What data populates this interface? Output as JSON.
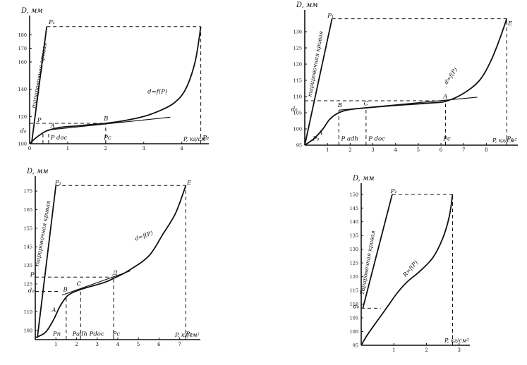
{
  "chart_data": [
    {
      "type": "line",
      "xlabel": "P, кг/см²",
      "ylabel": "D, мм",
      "xlim": [
        0,
        4.6
      ],
      "ylim": [
        100,
        190
      ],
      "x_ticks": [
        {
          "v": 0,
          "t": "0"
        },
        {
          "v": 1,
          "t": "1"
        },
        {
          "v": 2,
          "t": "2"
        },
        {
          "v": 3,
          "t": "3"
        },
        {
          "v": 4,
          "t": "4"
        }
      ],
      "y_ticks": [
        {
          "v": 100,
          "t": "100"
        },
        {
          "v": 120,
          "t": "120"
        },
        {
          "v": 140,
          "t": "140"
        },
        {
          "v": 160,
          "t": "160"
        },
        {
          "v": 170,
          "t": "170"
        },
        {
          "v": 180,
          "t": "180"
        }
      ],
      "series": [
        {
          "name": "d=f(P)",
          "role": "curve",
          "x": [
            0,
            0.15,
            0.35,
            0.5,
            0.8,
            1.2,
            1.6,
            2.0,
            2.5,
            3.0,
            3.4,
            3.8,
            4.1,
            4.35,
            4.5
          ],
          "y": [
            100,
            104,
            108,
            110,
            112,
            113,
            114,
            115,
            117,
            120,
            124,
            130,
            140,
            160,
            186
          ]
        },
        {
          "name": "",
          "role": "tangent",
          "x": [
            0.45,
            3.7
          ],
          "y": [
            110,
            119.5
          ]
        },
        {
          "name": "тарировочная кривая",
          "role": "calib",
          "x": [
            0.05,
            0.45
          ],
          "y": [
            100,
            186
          ]
        }
      ],
      "dashed": [
        {
          "x": [
            0.45,
            4.5
          ],
          "y": [
            186,
            186
          ]
        },
        {
          "x": [
            4.5,
            4.5
          ],
          "y": [
            100,
            186
          ]
        },
        {
          "x": [
            0,
            2.0
          ],
          "y": [
            115,
            115
          ]
        },
        {
          "x": [
            2.0,
            2.0
          ],
          "y": [
            100,
            115
          ]
        },
        {
          "x": [
            0.5,
            0.5
          ],
          "y": [
            100,
            110
          ]
        },
        {
          "x": [
            0.35,
            0.35
          ],
          "y": [
            100,
            108
          ]
        }
      ],
      "labels": [
        {
          "t": "d=f(P)",
          "x": 3.1,
          "y": 137
        },
        {
          "t": "B",
          "x": 1.95,
          "y": 117
        },
        {
          "t": "A",
          "x": 0.55,
          "y": 112
        },
        {
          "t": "P₁",
          "x": 0.5,
          "y": 188
        },
        {
          "t": "P₂",
          "x": 4.55,
          "y": 103
        },
        {
          "t": "P",
          "x": 0.2,
          "y": 116
        },
        {
          "t": "d₀",
          "x": -0.25,
          "y": 108
        },
        {
          "t": "Pc",
          "x": 1.95,
          "y": 103
        },
        {
          "t": "P doc",
          "x": 0.55,
          "y": 103
        },
        {
          "t": "тарировочная кривая",
          "x": 0.3,
          "y": 150,
          "rot": -80
        }
      ]
    },
    {
      "type": "line",
      "xlabel": "P, кг/см²",
      "ylabel": "D, мм",
      "xlim": [
        0,
        9.2
      ],
      "ylim": [
        95,
        135
      ],
      "x_ticks": [
        {
          "v": 1,
          "t": "1"
        },
        {
          "v": 2,
          "t": "2"
        },
        {
          "v": 3,
          "t": "3"
        },
        {
          "v": 4,
          "t": "4"
        },
        {
          "v": 5,
          "t": "5"
        },
        {
          "v": 6,
          "t": "6"
        },
        {
          "v": 7,
          "t": "7"
        },
        {
          "v": 8,
          "t": "8"
        }
      ],
      "y_ticks": [
        {
          "v": 95,
          "t": "95"
        },
        {
          "v": 100,
          "t": "100"
        },
        {
          "v": 105,
          "t": "105"
        },
        {
          "v": 110,
          "t": "110"
        },
        {
          "v": 115,
          "t": "115"
        },
        {
          "v": 120,
          "t": "120"
        },
        {
          "v": 125,
          "t": "125"
        },
        {
          "v": 130,
          "t": "130"
        }
      ],
      "series": [
        {
          "name": "d=f(P)",
          "role": "curve",
          "x": [
            0,
            0.4,
            0.8,
            1.1,
            1.5,
            2.0,
            2.7,
            3.5,
            4.5,
            5.5,
            6.2,
            7.0,
            7.7,
            8.2,
            8.6,
            8.9
          ],
          "y": [
            95,
            97,
            100,
            103,
            105,
            106,
            106.5,
            107,
            107.5,
            108,
            108.5,
            111,
            115,
            121,
            128,
            134
          ]
        },
        {
          "name": "",
          "role": "tangent",
          "x": [
            1.5,
            7.6
          ],
          "y": [
            105.8,
            109.8
          ]
        },
        {
          "name": "тарировочная кривая",
          "role": "calib",
          "x": [
            0,
            1.2
          ],
          "y": [
            95,
            134
          ]
        }
      ],
      "dashed": [
        {
          "x": [
            1.2,
            8.9
          ],
          "y": [
            134,
            134
          ]
        },
        {
          "x": [
            8.9,
            8.9
          ],
          "y": [
            95,
            134
          ]
        },
        {
          "x": [
            0,
            6.2
          ],
          "y": [
            108.7,
            108.7
          ]
        },
        {
          "x": [
            6.2,
            6.2
          ],
          "y": [
            95,
            108.7
          ]
        },
        {
          "x": [
            1.5,
            1.5
          ],
          "y": [
            95,
            105.8
          ]
        },
        {
          "x": [
            2.7,
            2.7
          ],
          "y": [
            95,
            106.5
          ]
        }
      ],
      "labels": [
        {
          "t": "d=f(P)",
          "x": 6.5,
          "y": 116,
          "rot": -55
        },
        {
          "t": "E",
          "x": 8.95,
          "y": 132
        },
        {
          "t": "A",
          "x": 6.1,
          "y": 109.5
        },
        {
          "t": "B",
          "x": 1.45,
          "y": 106.7
        },
        {
          "t": "C",
          "x": 2.6,
          "y": 107.3
        },
        {
          "t": "A",
          "x": 0.6,
          "y": 98.3
        },
        {
          "t": "d₀",
          "x": -0.6,
          "y": 105.5
        },
        {
          "t": "P₁",
          "x": 1.0,
          "y": 134.4
        },
        {
          "t": "Pc",
          "x": 6.1,
          "y": 96.4
        },
        {
          "t": "P₂",
          "x": 8.9,
          "y": 96.4
        },
        {
          "t": "P₀",
          "x": 0.35,
          "y": 96.4
        },
        {
          "t": "P adh",
          "x": 1.6,
          "y": 96.4
        },
        {
          "t": "P doc",
          "x": 2.8,
          "y": 96.4
        },
        {
          "t": "тарировочная кривая",
          "x": 0.55,
          "y": 120,
          "rot": -80
        }
      ]
    },
    {
      "type": "line",
      "xlabel": "P, кг/см²",
      "ylabel": "D, мм",
      "xlim": [
        0,
        7.8
      ],
      "ylim": [
        95,
        180
      ],
      "x_ticks": [
        {
          "v": 1,
          "t": "1"
        },
        {
          "v": 2,
          "t": "2"
        },
        {
          "v": 3,
          "t": "3"
        },
        {
          "v": 4,
          "t": "4"
        },
        {
          "v": 5,
          "t": "5"
        },
        {
          "v": 6,
          "t": "6"
        },
        {
          "v": 7,
          "t": "7"
        }
      ],
      "y_ticks": [
        {
          "v": 100,
          "t": "100"
        },
        {
          "v": 110,
          "t": "110"
        },
        {
          "v": 125,
          "t": "125"
        },
        {
          "v": 135,
          "t": "135"
        },
        {
          "v": 145,
          "t": "145"
        },
        {
          "v": 155,
          "t": "155"
        },
        {
          "v": 165,
          "t": "165"
        },
        {
          "v": 175,
          "t": "175"
        }
      ],
      "series": [
        {
          "name": "d=f(P)",
          "role": "curve",
          "x": [
            0,
            0.5,
            0.9,
            1.2,
            1.6,
            2.2,
            2.8,
            3.4,
            3.8,
            4.5,
            5.5,
            6.2,
            6.8,
            7.3
          ],
          "y": [
            96,
            99,
            106,
            113,
            119,
            122,
            124,
            126,
            128,
            132,
            140,
            152,
            163,
            178
          ]
        },
        {
          "name": "",
          "role": "tangent",
          "x": [
            1.3,
            4.6
          ],
          "y": [
            119,
            132
          ]
        },
        {
          "name": "тарировочная кривая",
          "role": "calib",
          "x": [
            0.1,
            1.0
          ],
          "y": [
            96,
            178
          ]
        }
      ],
      "dashed": [
        {
          "x": [
            1.0,
            7.3
          ],
          "y": [
            178,
            178
          ]
        },
        {
          "x": [
            7.3,
            7.3
          ],
          "y": [
            95,
            178
          ]
        },
        {
          "x": [
            0,
            3.8
          ],
          "y": [
            128.7,
            128.7
          ]
        },
        {
          "x": [
            3.8,
            3.8
          ],
          "y": [
            95,
            128.7
          ]
        },
        {
          "x": [
            0,
            1.1
          ],
          "y": [
            121,
            121
          ]
        },
        {
          "x": [
            1.5,
            1.5
          ],
          "y": [
            95,
            119
          ]
        },
        {
          "x": [
            2.2,
            2.2
          ],
          "y": [
            95,
            122
          ]
        }
      ],
      "labels": [
        {
          "t": "d=f(P)",
          "x": 5.3,
          "y": 150,
          "rot": -20
        },
        {
          "t": "E",
          "x": 7.35,
          "y": 178.5
        },
        {
          "t": "Д",
          "x": 3.75,
          "y": 130
        },
        {
          "t": "B",
          "x": 1.35,
          "y": 121
        },
        {
          "t": "C",
          "x": 2.0,
          "y": 124
        },
        {
          "t": "A",
          "x": 0.8,
          "y": 110
        },
        {
          "t": "d₀",
          "x": -0.35,
          "y": 120.5
        },
        {
          "t": "P₁",
          "x": 0.95,
          "y": 178.5
        },
        {
          "t": "P₁",
          "x": -0.25,
          "y": 129
        },
        {
          "t": "Pc",
          "x": 3.75,
          "y": 97
        },
        {
          "t": "P₂",
          "x": 7.3,
          "y": 97
        },
        {
          "t": "Pn",
          "x": 0.85,
          "y": 97
        },
        {
          "t": "Padh Pdoc",
          "x": 1.8,
          "y": 97
        },
        {
          "t": "тарировочная кривая",
          "x": 0.45,
          "y": 152,
          "rot": -80
        }
      ]
    },
    {
      "type": "line",
      "xlabel": "P, кг/см²",
      "ylabel": "D, мм",
      "xlim": [
        0,
        3.2
      ],
      "ylim": [
        95,
        152
      ],
      "x_ticks": [
        {
          "v": 1,
          "t": "1"
        },
        {
          "v": 2,
          "t": "2"
        },
        {
          "v": 3,
          "t": "3"
        }
      ],
      "y_ticks": [
        {
          "v": 95,
          "t": "95"
        },
        {
          "v": 100,
          "t": "100"
        },
        {
          "v": 105,
          "t": "105"
        },
        {
          "v": 110,
          "t": "110"
        },
        {
          "v": 115,
          "t": "115"
        },
        {
          "v": 120,
          "t": "120"
        },
        {
          "v": 125,
          "t": "125"
        },
        {
          "v": 130,
          "t": "130"
        },
        {
          "v": 135,
          "t": "135"
        },
        {
          "v": 140,
          "t": "140"
        },
        {
          "v": 145,
          "t": "145"
        },
        {
          "v": 150,
          "t": "150"
        }
      ],
      "series": [
        {
          "name": "R=f(P)",
          "role": "curve",
          "x": [
            0,
            0.2,
            0.5,
            0.8,
            1.1,
            1.4,
            1.8,
            2.2,
            2.5,
            2.7,
            2.8
          ],
          "y": [
            95,
            99,
            104,
            109,
            114,
            118,
            122,
            127,
            134,
            142,
            150
          ]
        },
        {
          "name": "Тарировочная кривая",
          "role": "calib",
          "x": [
            0.05,
            0.95
          ],
          "y": [
            108.5,
            150
          ]
        }
      ],
      "dashed": [
        {
          "x": [
            0.95,
            2.8
          ],
          "y": [
            150,
            150
          ]
        },
        {
          "x": [
            2.8,
            2.8
          ],
          "y": [
            95,
            150
          ]
        },
        {
          "x": [
            0,
            0.6
          ],
          "y": [
            108.5,
            108.5
          ]
        }
      ],
      "labels": [
        {
          "t": "R=f(P)",
          "x": 1.55,
          "y": 122.5,
          "rot": -50
        },
        {
          "t": "P₁",
          "x": 0.9,
          "y": 150.5
        },
        {
          "t": "d₀",
          "x": -0.25,
          "y": 108.5
        },
        {
          "t": "Тарировочная кривая",
          "x": 0.25,
          "y": 125,
          "rot": -80
        }
      ]
    }
  ]
}
